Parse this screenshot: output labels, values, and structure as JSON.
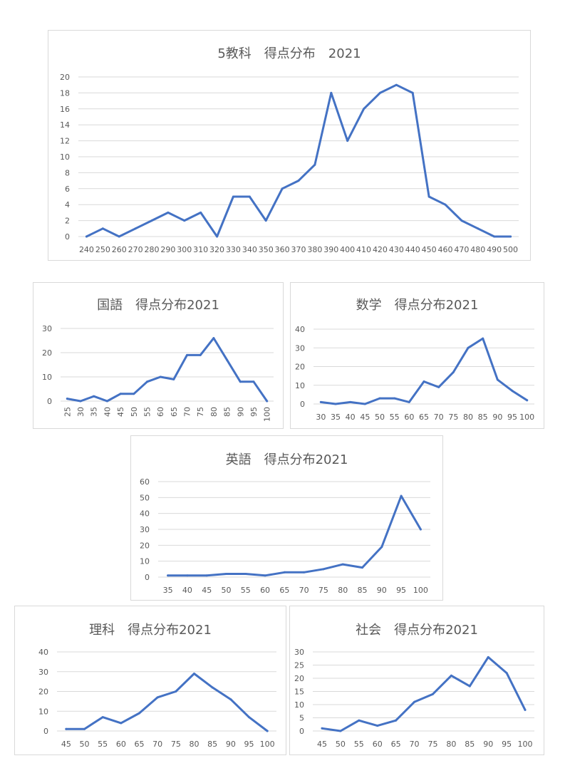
{
  "chart_data": [
    {
      "type": "line",
      "title": "5教科　得点分布　2021",
      "categories": [
        "240",
        "250",
        "260",
        "270",
        "280",
        "290",
        "300",
        "310",
        "320",
        "330",
        "340",
        "350",
        "360",
        "370",
        "380",
        "390",
        "400",
        "410",
        "420",
        "430",
        "440",
        "450",
        "460",
        "470",
        "480",
        "490",
        "500"
      ],
      "values": [
        0,
        1,
        0,
        1,
        2,
        3,
        2,
        3,
        0,
        5,
        5,
        2,
        6,
        7,
        9,
        18,
        12,
        16,
        18,
        19,
        18,
        5,
        4,
        2,
        1,
        0,
        0
      ],
      "ylim": [
        0,
        20
      ],
      "yticks": [
        0,
        2,
        4,
        6,
        8,
        10,
        12,
        14,
        16,
        18,
        20
      ],
      "grid": true
    },
    {
      "type": "line",
      "title": "国語　得点分布2021",
      "categories": [
        "25",
        "30",
        "35",
        "40",
        "45",
        "50",
        "55",
        "60",
        "65",
        "70",
        "75",
        "80",
        "85",
        "90",
        "95",
        "100"
      ],
      "values": [
        1,
        0,
        2,
        0,
        3,
        3,
        8,
        10,
        9,
        19,
        19,
        26,
        17,
        8,
        8,
        0
      ],
      "ylim": [
        0,
        30
      ],
      "yticks": [
        0,
        10,
        20,
        30
      ],
      "grid": true
    },
    {
      "type": "line",
      "title": "数学　得点分布2021",
      "categories": [
        "30",
        "35",
        "40",
        "45",
        "50",
        "55",
        "60",
        "65",
        "70",
        "75",
        "80",
        "85",
        "90",
        "95",
        "100"
      ],
      "values": [
        1,
        0,
        1,
        0,
        3,
        3,
        1,
        12,
        9,
        17,
        30,
        35,
        13,
        7,
        2
      ],
      "ylim": [
        0,
        40
      ],
      "yticks": [
        0,
        10,
        20,
        30,
        40
      ],
      "grid": true
    },
    {
      "type": "line",
      "title": "英語　得点分布2021",
      "categories": [
        "35",
        "40",
        "45",
        "50",
        "55",
        "60",
        "65",
        "70",
        "75",
        "80",
        "85",
        "90",
        "95",
        "100"
      ],
      "values": [
        1,
        1,
        1,
        2,
        2,
        1,
        3,
        3,
        5,
        8,
        6,
        19,
        51,
        30
      ],
      "ylim": [
        0,
        60
      ],
      "yticks": [
        0,
        10,
        20,
        30,
        40,
        50,
        60
      ],
      "grid": true
    },
    {
      "type": "line",
      "title": "理科　得点分布2021",
      "categories": [
        "45",
        "50",
        "55",
        "60",
        "65",
        "70",
        "75",
        "80",
        "85",
        "90",
        "95",
        "100"
      ],
      "values": [
        1,
        1,
        7,
        4,
        9,
        17,
        20,
        29,
        22,
        16,
        7,
        0
      ],
      "ylim": [
        0,
        40
      ],
      "yticks": [
        0,
        10,
        20,
        30,
        40
      ],
      "grid": true
    },
    {
      "type": "line",
      "title": "社会　得点分布2021",
      "categories": [
        "45",
        "50",
        "55",
        "60",
        "65",
        "70",
        "75",
        "80",
        "85",
        "90",
        "95",
        "100"
      ],
      "values": [
        1,
        0,
        4,
        2,
        4,
        11,
        14,
        21,
        17,
        28,
        22,
        8
      ],
      "ylim": [
        0,
        30
      ],
      "yticks": [
        0,
        5,
        10,
        15,
        20,
        25,
        30
      ],
      "grid": true
    }
  ],
  "colors": {
    "series": "#4472c4",
    "grid": "#d9d9d9",
    "text": "#595959",
    "border": "#d9d9d9"
  }
}
